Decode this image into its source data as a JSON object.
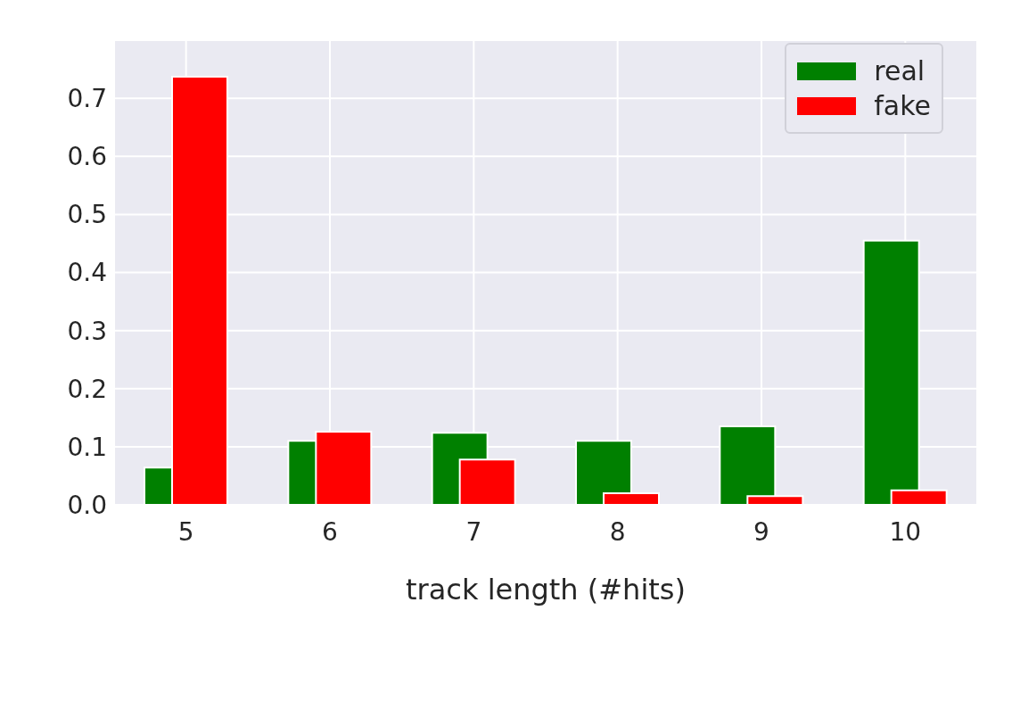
{
  "chart_data": {
    "type": "bar",
    "xlabel": "track length (#hits)",
    "categories": [
      "5",
      "6",
      "7",
      "8",
      "9",
      "10"
    ],
    "series": [
      {
        "name": "real",
        "color": "#008000",
        "values": [
          0.064,
          0.11,
          0.124,
          0.11,
          0.135,
          0.455
        ]
      },
      {
        "name": "fake",
        "color": "#ff0000",
        "values": [
          0.737,
          0.126,
          0.078,
          0.02,
          0.015,
          0.025
        ]
      }
    ],
    "ylim": [
      0,
      0.8
    ],
    "yticks": [
      {
        "value": 0,
        "label": "0.0"
      },
      {
        "value": 0.1,
        "label": "0.1"
      },
      {
        "value": 0.2,
        "label": "0.2"
      },
      {
        "value": 0.3,
        "label": "0.3"
      },
      {
        "value": 0.4,
        "label": "0.4"
      },
      {
        "value": 0.5,
        "label": "0.5"
      },
      {
        "value": 0.6,
        "label": "0.6"
      },
      {
        "value": 0.7,
        "label": "0.7"
      }
    ],
    "grid": true,
    "legend": "top right"
  }
}
